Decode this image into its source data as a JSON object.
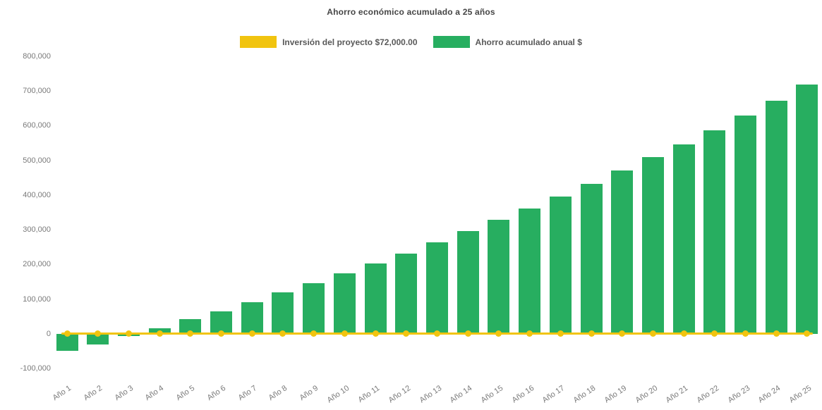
{
  "colors": {
    "bar_green": "#27AE60",
    "line_gold": "#F1C40F",
    "title_text": "#454545",
    "legend_text": "#595959",
    "axis_text": "#7A7A7A",
    "background": "#FFFFFF"
  },
  "legend": {
    "items": [
      {
        "label": "Inversión del proyecto $72,000.00",
        "color": "#F1C40F",
        "type": "line"
      },
      {
        "label": "Ahorro acumulado anual $",
        "color": "#27AE60",
        "type": "bar"
      }
    ]
  },
  "chart_data": {
    "type": "bar",
    "title": "Ahorro económico acumulado a 25 años",
    "xlabel": "",
    "ylabel": "",
    "grid": false,
    "legend_position": "top-center",
    "ylim": [
      -100000,
      800000
    ],
    "ytick_interval": 100000,
    "ytick_labels": [
      "-100,000",
      "0",
      "100,000",
      "200,000",
      "300,000",
      "400,000",
      "500,000",
      "600,000",
      "700,000",
      "800,000"
    ],
    "x_label_rotation_deg": -34,
    "categories": [
      "Año 1",
      "Año 2",
      "Año 3",
      "Año 4",
      "Año 5",
      "Año 6",
      "Año 7",
      "Año 8",
      "Año 9",
      "Año 10",
      "Año 11",
      "Año 12",
      "Año 13",
      "Año 14",
      "Año 15",
      "Año 16",
      "Año 17",
      "Año 18",
      "Año 19",
      "Año 20",
      "Año 21",
      "Año 22",
      "Año 23",
      "Año 24",
      "Año 25"
    ],
    "series": [
      {
        "name": "Ahorro acumulado anual $",
        "type": "bar",
        "color": "#27AE60",
        "values": [
          -50000,
          -30000,
          -7000,
          16000,
          42000,
          65000,
          91000,
          119000,
          146000,
          174000,
          202000,
          232000,
          264000,
          296000,
          329000,
          362000,
          396000,
          433000,
          470000,
          509000,
          546000,
          586000,
          630000,
          673000,
          718000
        ]
      },
      {
        "name": "Inversión del proyecto $72,000.00",
        "type": "line",
        "color": "#F1C40F",
        "marker": "circle",
        "values": [
          0,
          0,
          0,
          0,
          0,
          0,
          0,
          0,
          0,
          0,
          0,
          0,
          0,
          0,
          0,
          0,
          0,
          0,
          0,
          0,
          0,
          0,
          0,
          0,
          0
        ]
      }
    ]
  }
}
